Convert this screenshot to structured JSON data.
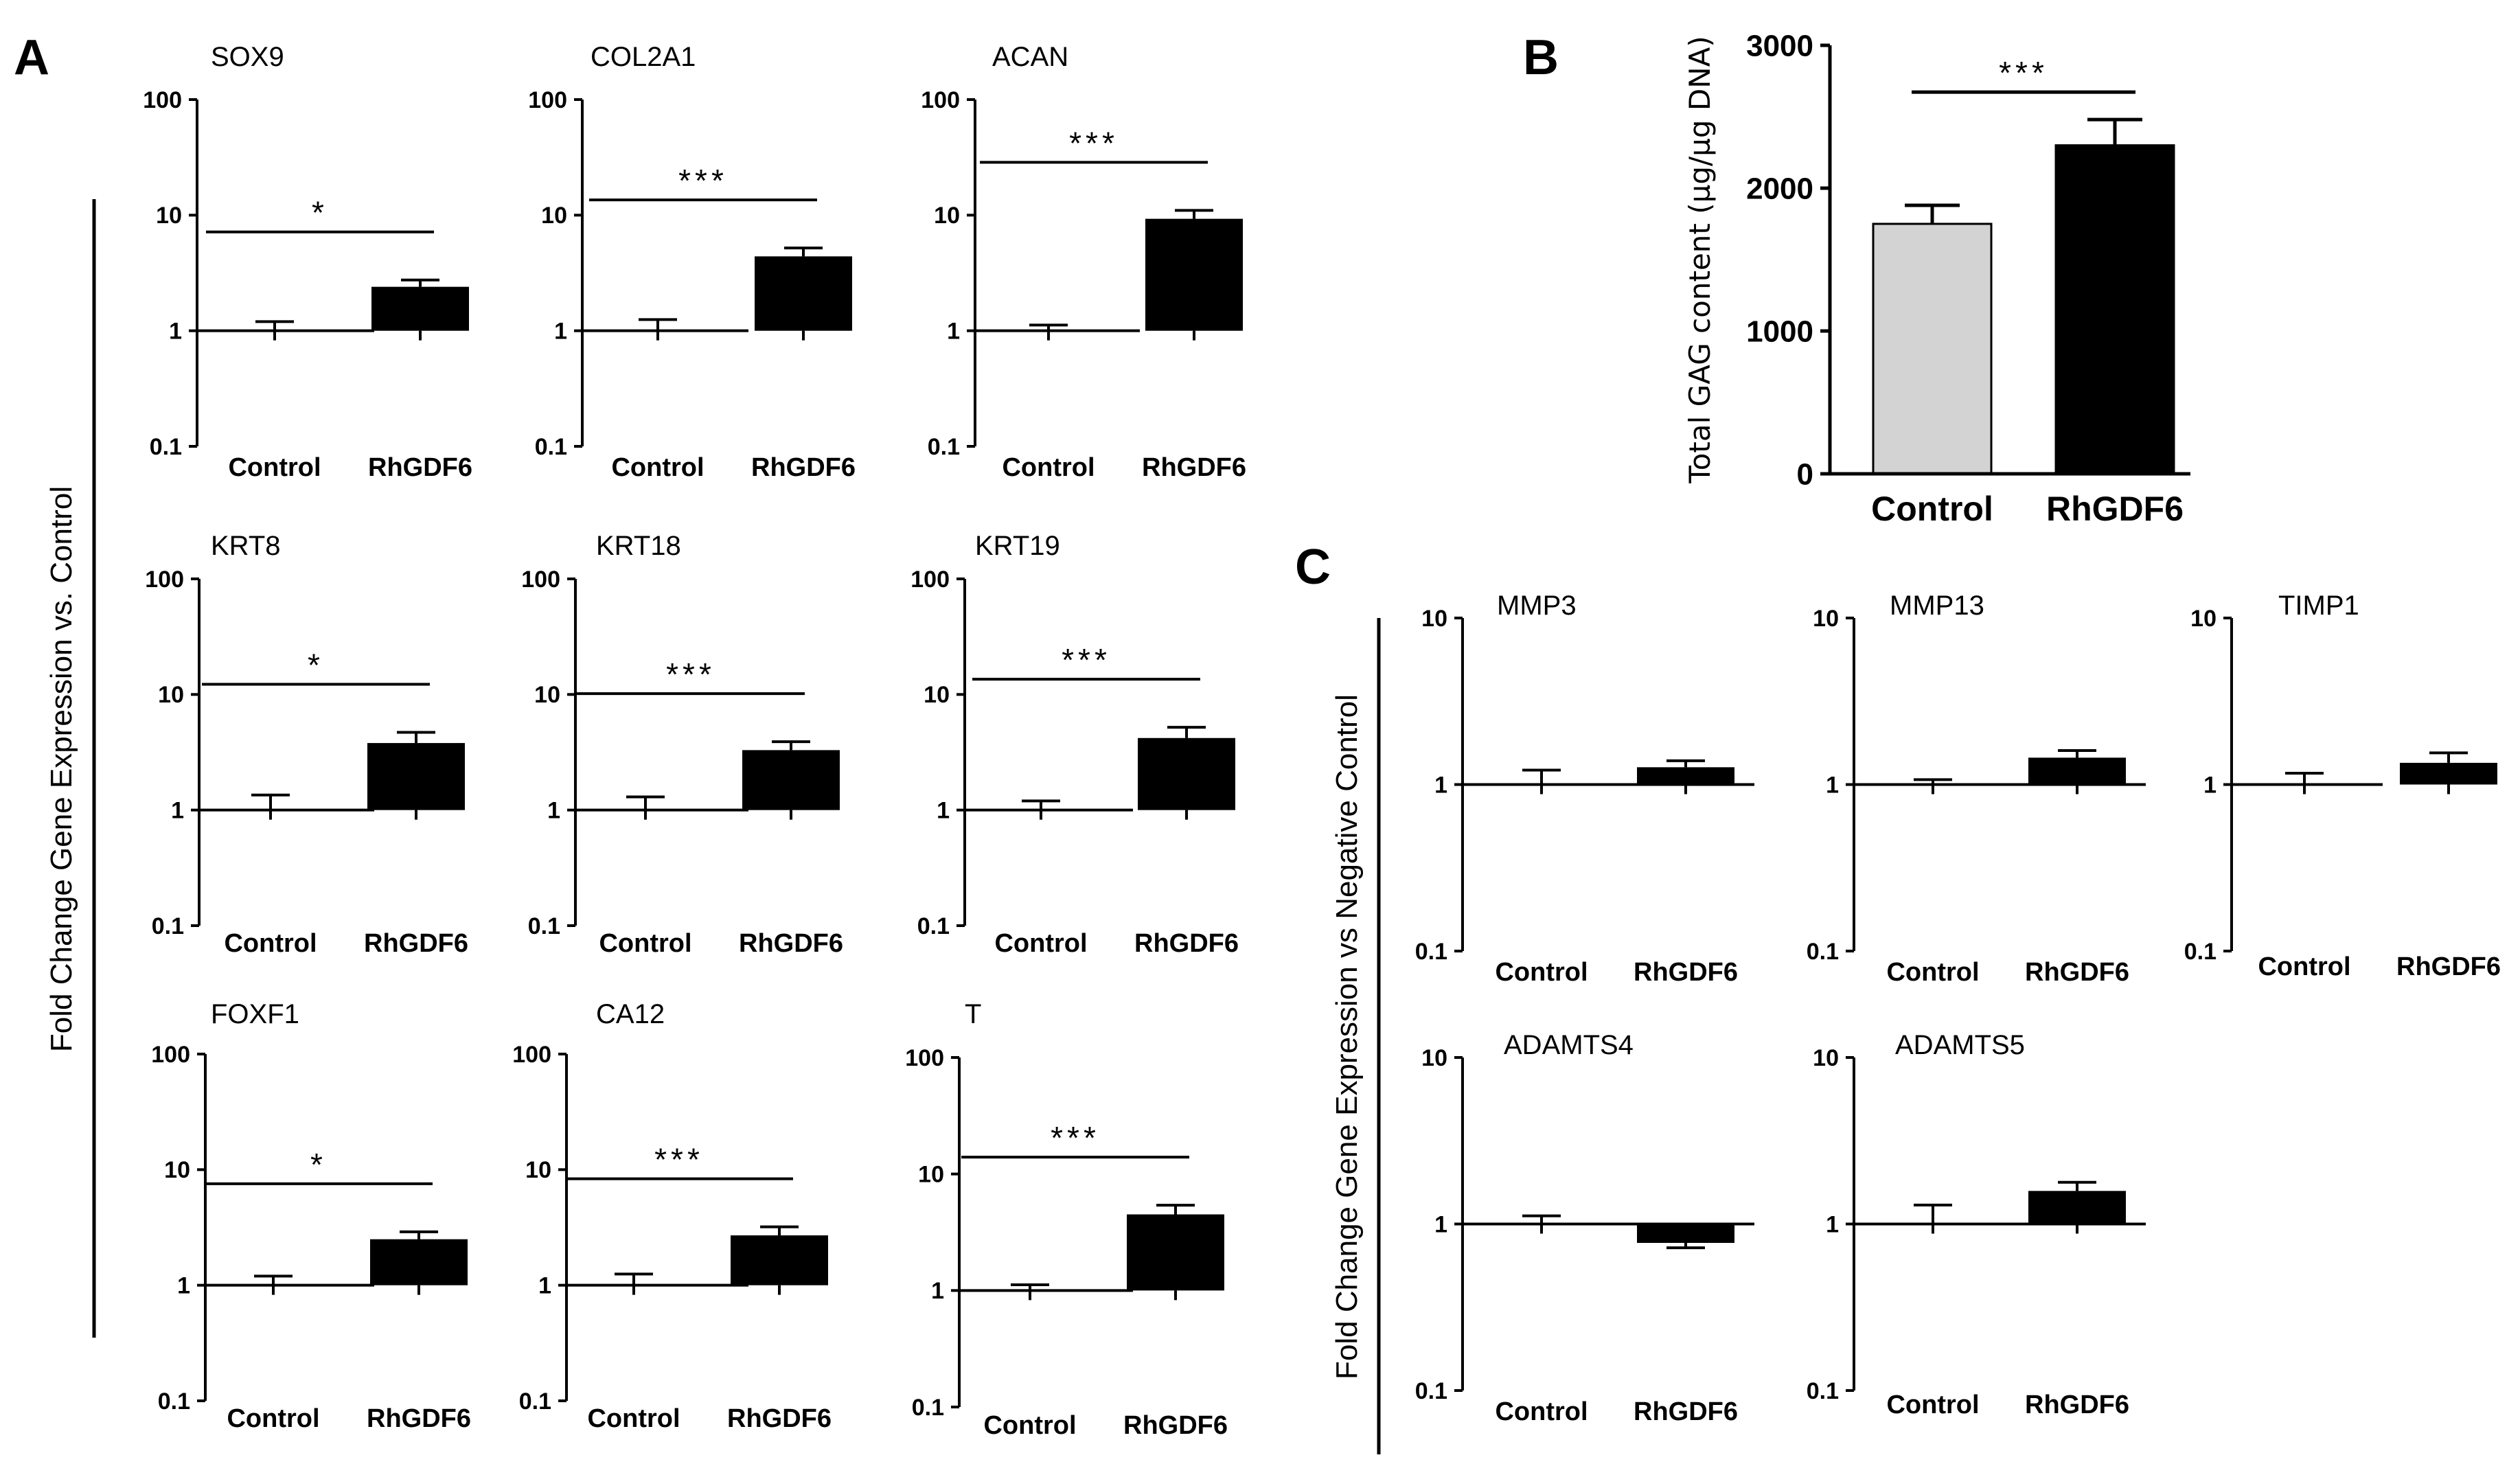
{
  "panel_labels": {
    "a": "A",
    "b": "B",
    "c": "C"
  },
  "panel_a_ylabel": "Fold Change Gene Expression  vs. Control",
  "panel_c_ylabel": "Fold Change Gene Expression  vs Negative Control",
  "chart_data": [
    {
      "id": "sox9",
      "panel": "A",
      "type": "bar",
      "scale": "log",
      "title": "SOX9",
      "categories": [
        "Control",
        "RhGDF6"
      ],
      "values": [
        1,
        2.4
      ],
      "error": [
        0.2,
        0.35
      ],
      "yticks": [
        "100",
        "10",
        "1",
        "0.1"
      ],
      "ylim": [
        0.1,
        100
      ],
      "significance": "*"
    },
    {
      "id": "col2a1",
      "panel": "A",
      "type": "bar",
      "scale": "log",
      "title": "COL2A1",
      "categories": [
        "Control",
        "RhGDF6"
      ],
      "values": [
        1,
        4.4
      ],
      "error": [
        0.25,
        0.8
      ],
      "yticks": [
        "100",
        "10",
        "1",
        "0.1"
      ],
      "ylim": [
        0.1,
        100
      ],
      "significance": "***"
    },
    {
      "id": "acan",
      "panel": "A",
      "type": "bar",
      "scale": "log",
      "title": "ACAN",
      "categories": [
        "Control",
        "RhGDF6"
      ],
      "values": [
        1,
        9.3
      ],
      "error": [
        0.12,
        1.7
      ],
      "yticks": [
        "100",
        "10",
        "1",
        "0.1"
      ],
      "ylim": [
        0.1,
        100
      ],
      "significance": "***"
    },
    {
      "id": "krt8",
      "panel": "A",
      "type": "bar",
      "scale": "log",
      "title": "KRT8",
      "categories": [
        "Control",
        "RhGDF6"
      ],
      "values": [
        1,
        3.8
      ],
      "error": [
        0.35,
        0.9
      ],
      "yticks": [
        "100",
        "10",
        "1",
        "0.1"
      ],
      "ylim": [
        0.1,
        100
      ],
      "significance": "*"
    },
    {
      "id": "krt18",
      "panel": "A",
      "type": "bar",
      "scale": "log",
      "title": "KRT18",
      "categories": [
        "Control",
        "RhGDF6"
      ],
      "values": [
        1,
        3.3
      ],
      "error": [
        0.3,
        0.6
      ],
      "yticks": [
        "100",
        "10",
        "1",
        "0.1"
      ],
      "ylim": [
        0.1,
        100
      ],
      "significance": "***"
    },
    {
      "id": "krt19",
      "panel": "A",
      "type": "bar",
      "scale": "log",
      "title": "KRT19",
      "categories": [
        "Control",
        "RhGDF6"
      ],
      "values": [
        1,
        4.2
      ],
      "error": [
        0.2,
        1.0
      ],
      "yticks": [
        "100",
        "10",
        "1",
        "0.1"
      ],
      "ylim": [
        0.1,
        100
      ],
      "significance": "***"
    },
    {
      "id": "foxf1",
      "panel": "A",
      "type": "bar",
      "scale": "log",
      "title": "FOXF1",
      "categories": [
        "Control",
        "RhGDF6"
      ],
      "values": [
        1,
        2.5
      ],
      "error": [
        0.2,
        0.4
      ],
      "yticks": [
        "100",
        "10",
        "1",
        "0.1"
      ],
      "ylim": [
        0.1,
        100
      ],
      "significance": "*"
    },
    {
      "id": "ca12",
      "panel": "A",
      "type": "bar",
      "scale": "log",
      "title": "CA12",
      "categories": [
        "Control",
        "RhGDF6"
      ],
      "values": [
        1,
        2.7
      ],
      "error": [
        0.25,
        0.5
      ],
      "yticks": [
        "100",
        "10",
        "1",
        "0.1"
      ],
      "ylim": [
        0.1,
        100
      ],
      "significance": "***"
    },
    {
      "id": "t",
      "panel": "A",
      "type": "bar",
      "scale": "log",
      "title": "T",
      "categories": [
        "Control",
        "RhGDF6"
      ],
      "values": [
        1,
        4.5
      ],
      "error": [
        0.12,
        0.9
      ],
      "yticks": [
        "100",
        "10",
        "1",
        "0.1"
      ],
      "ylim": [
        0.1,
        100
      ],
      "significance": "***"
    },
    {
      "id": "gag",
      "panel": "B",
      "type": "bar",
      "scale": "linear",
      "title": "",
      "ylabel": "Total GAG content (µg/µg DNA)",
      "categories": [
        "Control",
        "RhGDF6"
      ],
      "values": [
        1750,
        2300
      ],
      "error": [
        130,
        180
      ],
      "yticks": [
        "3000",
        "2000",
        "1000",
        "0"
      ],
      "ylim": [
        0,
        3000
      ],
      "significance": "***",
      "colors": [
        "#d3d3d3",
        "#000000"
      ]
    },
    {
      "id": "mmp3",
      "panel": "C",
      "type": "bar",
      "scale": "log",
      "title": "MMP3",
      "categories": [
        "Control",
        "RhGDF6"
      ],
      "values": [
        1,
        1.27
      ],
      "error": [
        0.22,
        0.12
      ],
      "yticks": [
        "10",
        "1",
        "0.1"
      ],
      "ylim": [
        0.1,
        10
      ],
      "significance": ""
    },
    {
      "id": "mmp13",
      "panel": "C",
      "type": "bar",
      "scale": "log",
      "title": "MMP13",
      "categories": [
        "Control",
        "RhGDF6"
      ],
      "values": [
        1,
        1.45
      ],
      "error": [
        0.07,
        0.15
      ],
      "yticks": [
        "10",
        "1",
        "0.1"
      ],
      "ylim": [
        0.1,
        10
      ],
      "significance": ""
    },
    {
      "id": "timp1",
      "panel": "C",
      "type": "bar",
      "scale": "log",
      "title": "TIMP1",
      "categories": [
        "Control",
        "RhGDF6"
      ],
      "values": [
        1,
        1.35
      ],
      "error": [
        0.17,
        0.2
      ],
      "yticks": [
        "10",
        "1",
        "0.1"
      ],
      "ylim": [
        0.1,
        10
      ],
      "significance": ""
    },
    {
      "id": "adamts4",
      "panel": "C",
      "type": "bar",
      "scale": "log",
      "title": "ADAMTS4",
      "categories": [
        "Control",
        "RhGDF6"
      ],
      "values": [
        1,
        0.77
      ],
      "error": [
        0.12,
        0.05
      ],
      "yticks": [
        "10",
        "1",
        "0.1"
      ],
      "ylim": [
        0.1,
        10
      ],
      "significance": ""
    },
    {
      "id": "adamts5",
      "panel": "C",
      "type": "bar",
      "scale": "log",
      "title": "ADAMTS5",
      "categories": [
        "Control",
        "RhGDF6"
      ],
      "values": [
        1,
        1.58
      ],
      "error": [
        0.3,
        0.2
      ],
      "yticks": [
        "10",
        "1",
        "0.1"
      ],
      "ylim": [
        0.1,
        10
      ],
      "significance": ""
    }
  ]
}
